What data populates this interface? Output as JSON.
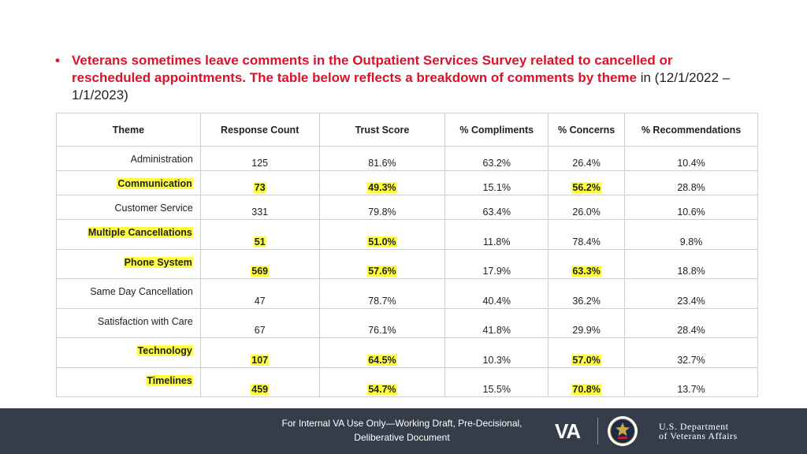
{
  "intro": {
    "red_text": "Veterans sometimes leave comments in the Outpatient Services Survey related to cancelled or rescheduled appointments. The table below reflects a breakdown of comments by theme",
    "black_text": " in (12/1/2022 – 1/1/2023)"
  },
  "table": {
    "headers": [
      "Theme",
      "Response Count",
      "Trust Score",
      "% Compliments",
      "% Concerns",
      "% Recommendations"
    ],
    "rows": [
      {
        "theme": "Administration",
        "count": "125",
        "trust": "81.6%",
        "compliments": "63.2%",
        "concerns": "26.4%",
        "recommendations": "10.4%"
      },
      {
        "theme": "Communication",
        "count": "73",
        "trust": "49.3%",
        "compliments": "15.1%",
        "concerns": "56.2%",
        "recommendations": "28.8%"
      },
      {
        "theme": "Customer Service",
        "count": "331",
        "trust": "79.8%",
        "compliments": "63.4%",
        "concerns": "26.0%",
        "recommendations": "10.6%"
      },
      {
        "theme": "Multiple Cancellations",
        "count": "51",
        "trust": "51.0%",
        "compliments": "11.8%",
        "concerns": "78.4%",
        "recommendations": "9.8%"
      },
      {
        "theme": "Phone System",
        "count": "569",
        "trust": "57.6%",
        "compliments": "17.9%",
        "concerns": "63.3%",
        "recommendations": "18.8%"
      },
      {
        "theme": "Same Day Cancellation",
        "count": "47",
        "trust": "78.7%",
        "compliments": "40.4%",
        "concerns": "36.2%",
        "recommendations": "23.4%"
      },
      {
        "theme": "Satisfaction with Care",
        "count": "67",
        "trust": "76.1%",
        "compliments": "41.8%",
        "concerns": "29.9%",
        "recommendations": "28.4%"
      },
      {
        "theme": "Technology",
        "count": "107",
        "trust": "64.5%",
        "compliments": "10.3%",
        "concerns": "57.0%",
        "recommendations": "32.7%"
      },
      {
        "theme": "Timelines",
        "count": "459",
        "trust": "54.7%",
        "compliments": "15.5%",
        "concerns": "70.8%",
        "recommendations": "13.7%"
      }
    ]
  },
  "footer": {
    "note_line1": "For Internal VA Use Only—Working Draft, Pre-Decisional,",
    "note_line2": "Deliberative Document",
    "logo_text": "VA",
    "dept_line1": "U.S. Department",
    "dept_line2": "of Veterans Affairs"
  },
  "colors": {
    "accent_red": "#e0102a",
    "highlight_yellow": "#ffff40",
    "footer_bg": "#353d4b"
  },
  "icons": {
    "bullet": "bullet-dot",
    "seal": "va-seal-icon"
  }
}
